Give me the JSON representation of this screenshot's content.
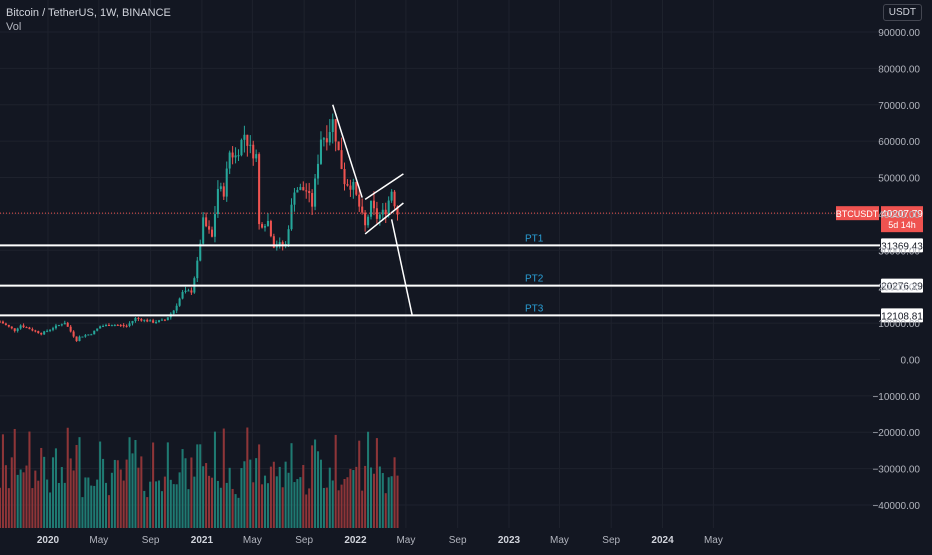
{
  "header": {
    "symbol_line": "Bitcoin / TetherUS, 1W, BINANCE",
    "volume_label": "Vol",
    "currency": "USDT"
  },
  "colors": {
    "background": "#131722",
    "grid": "#1e222d",
    "up": "#26a69a",
    "down": "#ef5350",
    "up_volume": "#1f7a72",
    "down_volume": "#8e3538",
    "axis_text": "#b2b5be",
    "annotation_text": "#2a9fd6",
    "line": "#ffffff"
  },
  "chart_data": {
    "type": "candlestick",
    "symbol": "BTCUSDT",
    "timeframe": "1W",
    "exchange": "BINANCE",
    "yaxis": {
      "ylim": [
        -48000,
        95000
      ],
      "ticks": [
        90000,
        80000,
        70000,
        60000,
        50000,
        40000,
        30000,
        20000,
        10000,
        0,
        -10000,
        -20000,
        -30000,
        -40000
      ],
      "tick_labels": [
        "90000.00",
        "80000.00",
        "70000.00",
        "60000.00",
        "50000.00",
        "40000.00",
        "30000.00",
        "20000.00",
        "10000.00",
        "0.00",
        "−10000.00",
        "−20000.00",
        "−30000.00",
        "−40000.00"
      ]
    },
    "xaxis": {
      "start": "2019-09-09",
      "end": "2025-06-01",
      "ticks": [
        {
          "date": "2020-01-01",
          "label": "2020",
          "bold": true
        },
        {
          "date": "2020-05-01",
          "label": "May",
          "bold": false
        },
        {
          "date": "2020-09-01",
          "label": "Sep",
          "bold": false
        },
        {
          "date": "2021-01-01",
          "label": "2021",
          "bold": true
        },
        {
          "date": "2021-05-01",
          "label": "May",
          "bold": false
        },
        {
          "date": "2021-09-01",
          "label": "Sep",
          "bold": false
        },
        {
          "date": "2022-01-01",
          "label": "2022",
          "bold": true
        },
        {
          "date": "2022-05-01",
          "label": "May",
          "bold": false
        },
        {
          "date": "2022-09-01",
          "label": "Sep",
          "bold": false
        },
        {
          "date": "2023-01-01",
          "label": "2023",
          "bold": true
        },
        {
          "date": "2023-05-01",
          "label": "May",
          "bold": false
        },
        {
          "date": "2023-09-01",
          "label": "Sep",
          "bold": false
        },
        {
          "date": "2024-01-01",
          "label": "2024",
          "bold": true
        },
        {
          "date": "2024-05-01",
          "label": "May",
          "bold": false
        }
      ]
    },
    "price_anchors": [
      [
        "2019-09-09",
        10400
      ],
      [
        "2019-10-14",
        8000
      ],
      [
        "2019-10-28",
        9400
      ],
      [
        "2019-12-16",
        7100
      ],
      [
        "2020-01-13",
        8700
      ],
      [
        "2020-02-10",
        10200
      ],
      [
        "2020-03-09",
        5200
      ],
      [
        "2020-03-16",
        6200
      ],
      [
        "2020-04-13",
        7100
      ],
      [
        "2020-05-04",
        9100
      ],
      [
        "2020-06-01",
        9600
      ],
      [
        "2020-07-06",
        9200
      ],
      [
        "2020-07-27",
        11300
      ],
      [
        "2020-09-07",
        10300
      ],
      [
        "2020-10-05",
        10800
      ],
      [
        "2020-10-26",
        13500
      ],
      [
        "2020-11-16",
        18300
      ],
      [
        "2020-12-07",
        18800
      ],
      [
        "2020-12-21",
        26500
      ],
      [
        "2021-01-04",
        38000
      ],
      [
        "2021-01-25",
        33500
      ],
      [
        "2021-02-08",
        47000
      ],
      [
        "2021-02-22",
        46000
      ],
      [
        "2021-03-08",
        57000
      ],
      [
        "2021-03-22",
        55800
      ],
      [
        "2021-04-12",
        62000
      ],
      [
        "2021-04-26",
        57800
      ],
      [
        "2021-05-10",
        56000
      ],
      [
        "2021-05-17",
        37000
      ],
      [
        "2021-06-07",
        38000
      ],
      [
        "2021-06-21",
        31500
      ],
      [
        "2021-07-19",
        31500
      ],
      [
        "2021-08-09",
        47000
      ],
      [
        "2021-09-06",
        46500
      ],
      [
        "2021-09-20",
        42500
      ],
      [
        "2021-10-11",
        61000
      ],
      [
        "2021-10-25",
        61500
      ],
      [
        "2021-11-08",
        65500
      ],
      [
        "2021-11-22",
        57000
      ],
      [
        "2021-12-06",
        49000
      ],
      [
        "2021-12-27",
        47500
      ],
      [
        "2022-01-10",
        42000
      ],
      [
        "2022-01-24",
        36500
      ],
      [
        "2022-02-07",
        42500
      ],
      [
        "2022-02-21",
        39000
      ],
      [
        "2022-03-14",
        41000
      ],
      [
        "2022-03-28",
        46500
      ],
      [
        "2022-04-04",
        43000
      ],
      [
        "2022-04-11",
        40207.79
      ]
    ],
    "price_line": {
      "value": 40207.79,
      "label": "BTCUSDT",
      "price": "40207.79",
      "countdown": "5d 14h"
    },
    "horizontal_lines": [
      {
        "value": 31369.43,
        "label": "31369.43",
        "annotation": "PT1"
      },
      {
        "value": 20276.29,
        "label": "20276.29",
        "annotation": "PT2"
      },
      {
        "value": 12108.81,
        "label": "12108.81",
        "annotation": "PT3"
      }
    ],
    "trend_lines": [
      {
        "from": [
          "2021-11-08",
          70000
        ],
        "to": [
          "2022-01-17",
          44500
        ]
      },
      {
        "from": [
          "2022-01-24",
          34500
        ],
        "to": [
          "2022-04-25",
          43000
        ]
      },
      {
        "from": [
          "2022-01-24",
          44000
        ],
        "to": [
          "2022-04-25",
          51000
        ]
      },
      {
        "from": [
          "2022-03-28",
          38500
        ],
        "to": [
          "2022-05-16",
          12100
        ]
      }
    ]
  }
}
